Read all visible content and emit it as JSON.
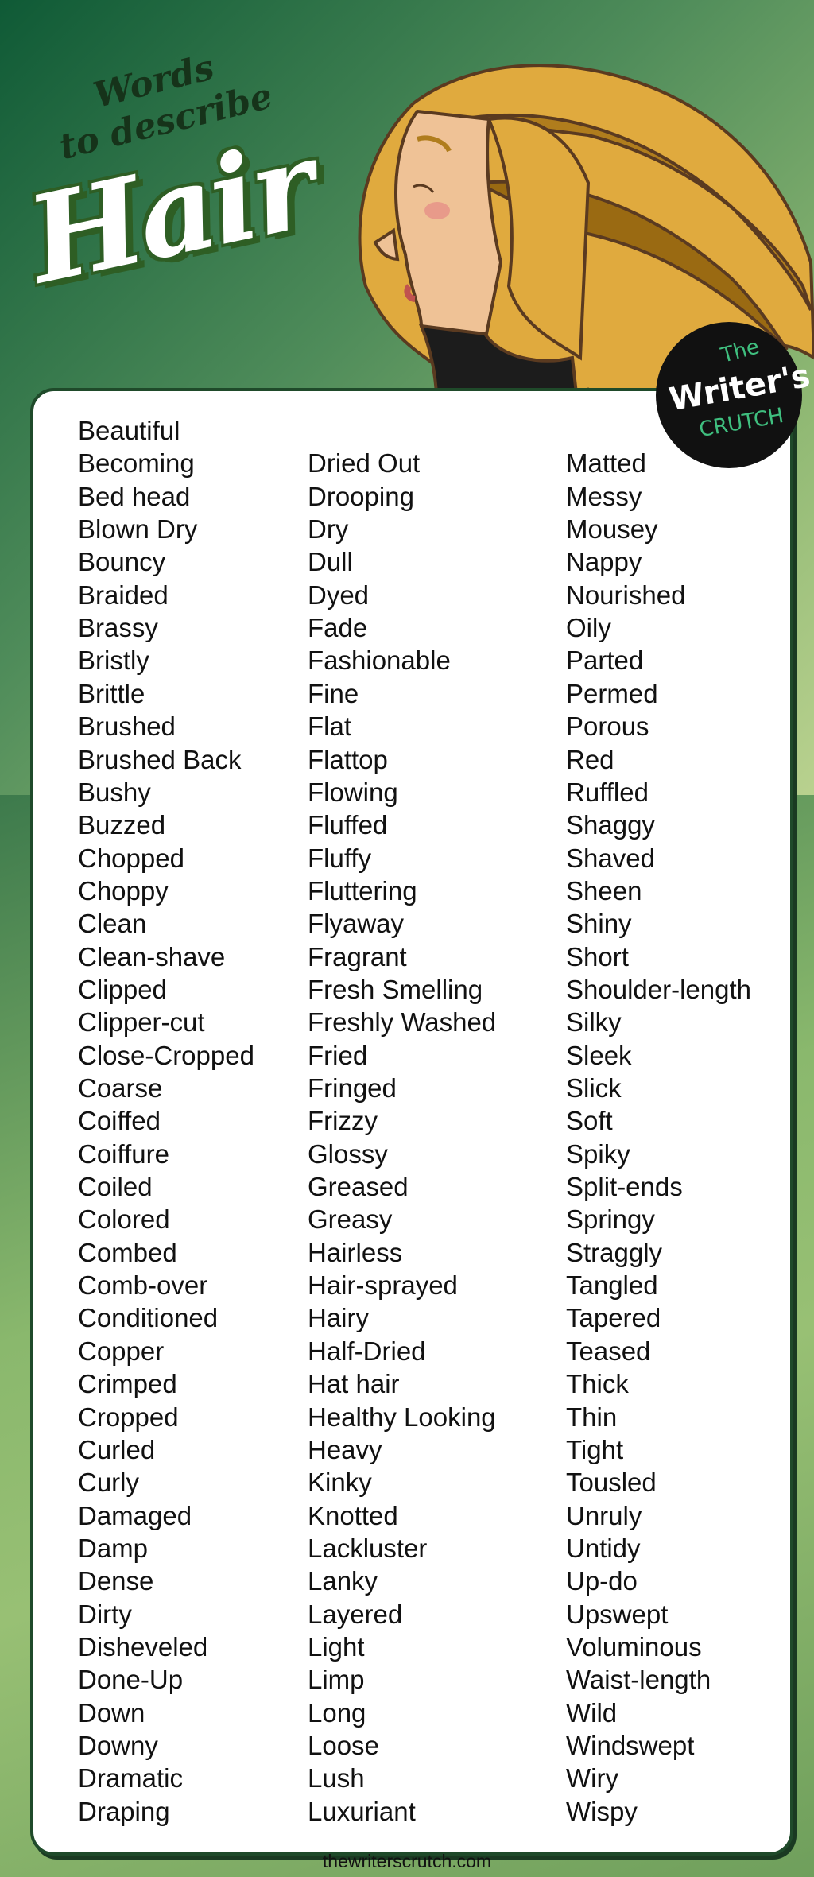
{
  "header": {
    "line1": "Words",
    "line2": "to describe",
    "title": "Hair"
  },
  "logo": {
    "the": "The",
    "writers": "Writer's",
    "crutch": "CRUTCH"
  },
  "colors": {
    "background_dark": "#0f5a36",
    "background_light": "#d6e3a2",
    "hair": "#e0aa3e",
    "card_border": "#1f4a2a",
    "logo_accent": "#3fbf7f"
  },
  "columns": [
    [
      "Beautiful",
      "Becoming",
      "Bed head",
      "Blown Dry",
      "Bouncy",
      "Braided",
      "Brassy",
      "Bristly",
      "Brittle",
      "Brushed",
      "Brushed Back",
      "Bushy",
      "Buzzed",
      "Chopped",
      "Choppy",
      "Clean",
      "Clean-shave",
      "Clipped",
      "Clipper-cut",
      "Close-Cropped",
      "Coarse",
      "Coiffed",
      "Coiffure",
      "Coiled",
      "Colored",
      "Combed",
      "Comb-over",
      "Conditioned",
      "Copper",
      "Crimped",
      "Cropped",
      "Curled",
      "Curly",
      "Damaged",
      "Damp",
      "Dense",
      "Dirty",
      "Disheveled",
      "Done-Up",
      "Down",
      "Downy",
      "Dramatic",
      "Draping"
    ],
    [
      "Dried Out",
      "Drooping",
      "Dry",
      "Dull",
      "Dyed",
      "Fade",
      "Fashionable",
      "Fine",
      "Flat",
      "Flattop",
      "Flowing",
      "Fluffed",
      "Fluffy",
      "Fluttering",
      "Flyaway",
      "Fragrant",
      "Fresh Smelling",
      "Freshly Washed",
      "Fried",
      "Fringed",
      "Frizzy",
      "Glossy",
      "Greased",
      "Greasy",
      "Hairless",
      "Hair-sprayed",
      "Hairy",
      "Half-Dried",
      "Hat hair",
      "Healthy Looking",
      "Heavy",
      "Kinky",
      "Knotted",
      "Lackluster",
      "Lanky",
      "Layered",
      "Light",
      "Limp",
      "Long",
      "Loose",
      "Lush",
      "Luxuriant"
    ],
    [
      "Matted",
      "Messy",
      "Mousey",
      "Nappy",
      "Nourished",
      "Oily",
      "Parted",
      "Permed",
      "Porous",
      "Red",
      "Ruffled",
      "Shaggy",
      "Shaved",
      "Sheen",
      "Shiny",
      "Short",
      "Shoulder-length",
      "Silky",
      "Sleek",
      "Slick",
      "Soft",
      "Spiky",
      "Split-ends",
      "Springy",
      "Straggly",
      "Tangled",
      "Tapered",
      "Teased",
      "Thick",
      "Thin",
      "Tight",
      "Tousled",
      "Unruly",
      "Untidy",
      "Up-do",
      "Upswept",
      "Voluminous",
      "Waist-length",
      "Wild",
      "Windswept",
      "Wiry",
      "Wispy"
    ]
  ],
  "footer": "thewriterscrutch.com"
}
